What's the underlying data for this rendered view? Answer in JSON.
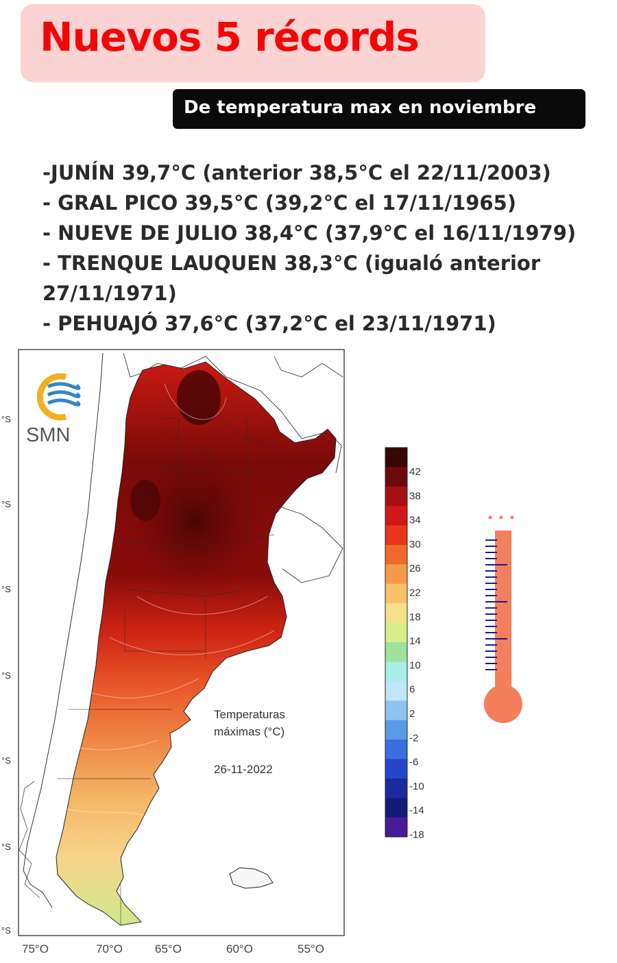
{
  "headline": "Nuevos 5 récords",
  "subheadline": "De temperatura max en noviembre",
  "records": [
    "-JUNÍN 39,7°C  (anterior 38,5°C el 22/11/2003)",
    "- GRAL PICO 39,5°C (39,2°C el 17/11/1965)",
    "- NUEVE DE JULIO 38,4°C (37,9°C el 16/11/1979)",
    "- TRENQUE LAUQUEN 38,3°C (igualó anterior",
    "27/11/1971)",
    "- PEHUAJÓ 37,6°C (37,2°C el 23/11/1971)"
  ],
  "map": {
    "logo_text": "SMN",
    "caption_line1": "Temperaturas",
    "caption_line2": "máximas (°C)",
    "date": "26-11-2022",
    "lon_labels": [
      "75°O",
      "70°O",
      "65°O",
      "60°O",
      "55°O"
    ],
    "lat_labels": [
      "°S",
      "°S",
      "°S",
      "°S",
      "°S",
      "°S",
      "°S"
    ]
  },
  "legend": {
    "labels": [
      "42",
      "38",
      "34",
      "30",
      "26",
      "22",
      "18",
      "14",
      "10",
      "6",
      "2",
      "-2",
      "-6",
      "-10",
      "-14",
      "-18"
    ],
    "colors": [
      "#3a0505",
      "#6e0a0a",
      "#a51010",
      "#d01818",
      "#e8361c",
      "#f06a2c",
      "#f59a48",
      "#f8c26a",
      "#f5e08c",
      "#d8ec8a",
      "#9ee39a",
      "#a8eee6",
      "#bfe6fa",
      "#8cc4f2",
      "#5a9ae6",
      "#3a6ee0",
      "#2546c8",
      "#1a2aa0",
      "#141a7a",
      "#4a1a9a"
    ]
  },
  "thermometer": {
    "body_color": "#f47f5c",
    "tick_color": "#1a1a8a"
  }
}
